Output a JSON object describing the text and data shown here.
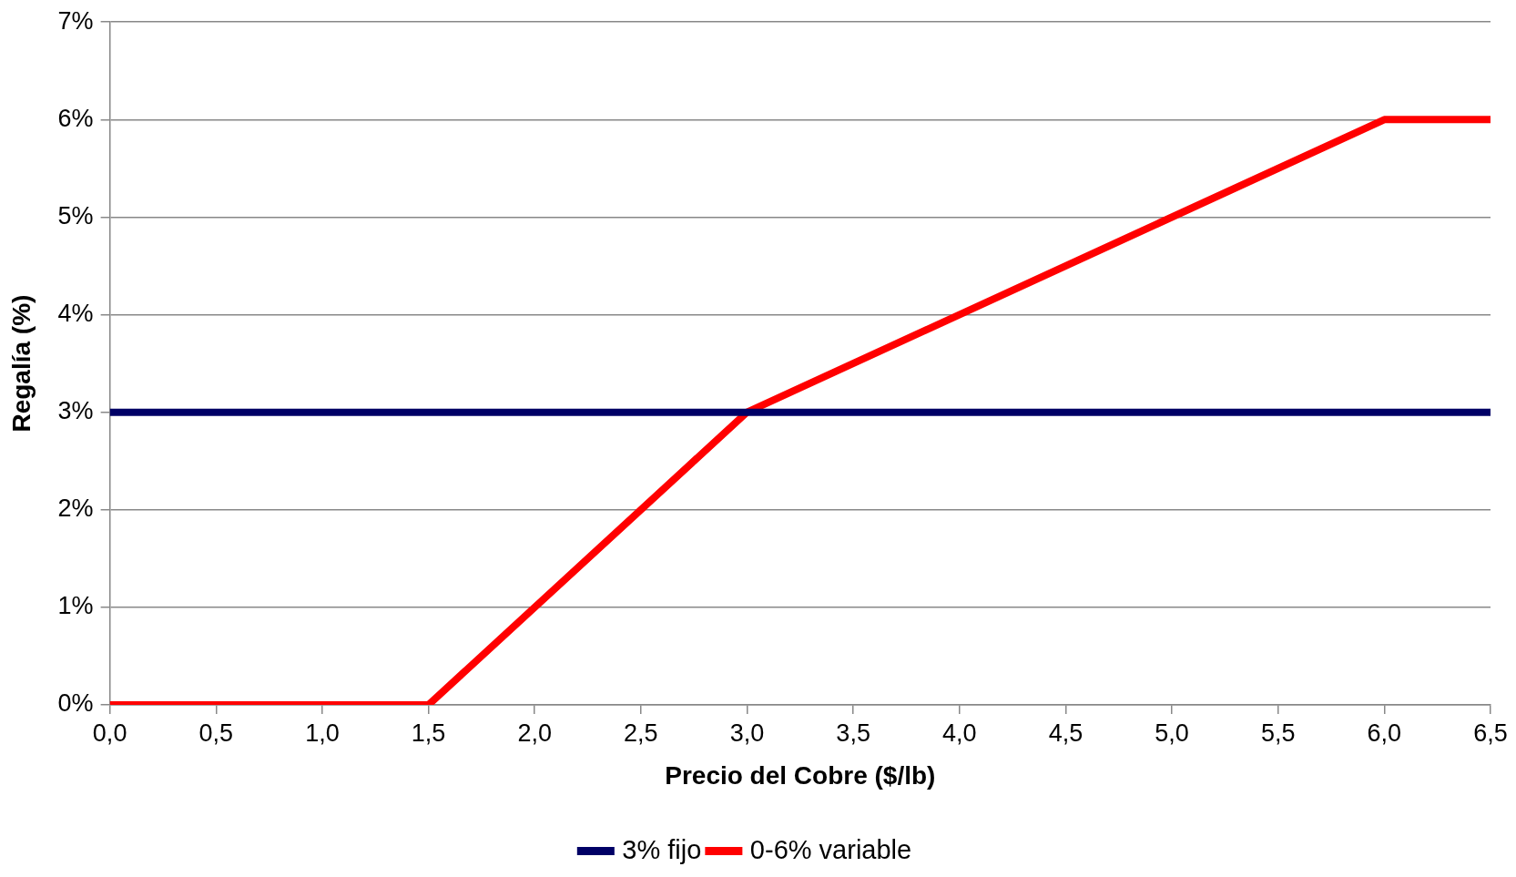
{
  "chart_data": {
    "type": "line",
    "xlabel": "Precio del Cobre ($/lb)",
    "ylabel": "Regalía (%)",
    "series": [
      {
        "name": "3% fijo",
        "color": "#000066",
        "x": [
          0,
          6.5
        ],
        "values": [
          3,
          3
        ]
      },
      {
        "name": "0-6% variable",
        "color": "#ff0000",
        "x": [
          0,
          1.5,
          3,
          6,
          6.5
        ],
        "values": [
          0,
          0,
          3,
          6,
          6
        ]
      }
    ],
    "xlim": [
      0,
      6.5
    ],
    "xticks": [
      {
        "value": 0,
        "label": "0,0"
      },
      {
        "value": 0.5,
        "label": "0,5"
      },
      {
        "value": 1,
        "label": "1,0"
      },
      {
        "value": 1.5,
        "label": "1,5"
      },
      {
        "value": 2,
        "label": "2,0"
      },
      {
        "value": 2.5,
        "label": "2,5"
      },
      {
        "value": 3,
        "label": "3,0"
      },
      {
        "value": 3.5,
        "label": "3,5"
      },
      {
        "value": 4,
        "label": "4,0"
      },
      {
        "value": 4.5,
        "label": "4,5"
      },
      {
        "value": 5,
        "label": "5,0"
      },
      {
        "value": 5.5,
        "label": "5,5"
      },
      {
        "value": 6,
        "label": "6,0"
      },
      {
        "value": 6.5,
        "label": "6,5"
      }
    ],
    "ylim": [
      0,
      7
    ],
    "yticks": [
      {
        "value": 0,
        "label": "0%"
      },
      {
        "value": 1,
        "label": "1%"
      },
      {
        "value": 2,
        "label": "2%"
      },
      {
        "value": 3,
        "label": "3%"
      },
      {
        "value": 4,
        "label": "4%"
      },
      {
        "value": 5,
        "label": "5%"
      },
      {
        "value": 6,
        "label": "6%"
      },
      {
        "value": 7,
        "label": "7%"
      }
    ],
    "grid": "y",
    "legend": "bottom",
    "marker": "none",
    "line_style": "solid"
  }
}
